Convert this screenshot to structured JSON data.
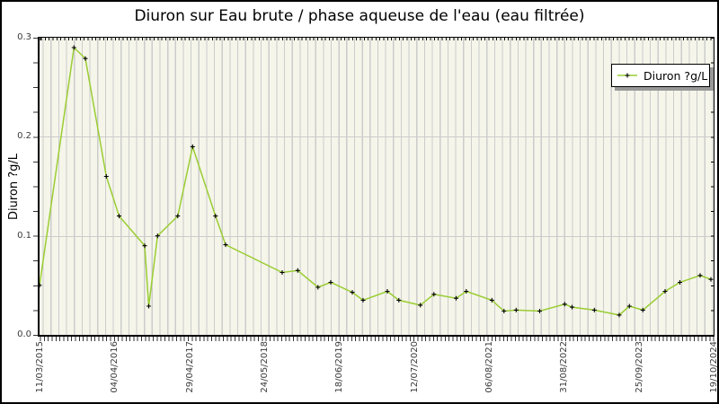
{
  "title": "Diuron sur Eau brute / phase aqueuse de l'eau (eau filtrée)",
  "legend": {
    "label": "Diuron ?g/L"
  },
  "y_axis": {
    "title": "Diuron ?g/L",
    "tick_labels": [
      "0.3",
      "0.2",
      "0.1",
      "0.0"
    ],
    "min": 0.0,
    "max": 0.3
  },
  "x_axis": {
    "tick_labels": [
      "11/03/2015",
      "04/04/2016",
      "29/04/2017",
      "24/05/2018",
      "18/06/2019",
      "12/07/2020",
      "06/08/2021",
      "31/08/2022",
      "25/09/2023",
      "19/10/2024"
    ]
  },
  "colors": {
    "line": "#9acd32",
    "marker": "#000000",
    "plot_background": "#f5f5ea",
    "grid": "#cccccc",
    "legend_shadow": "#999999",
    "text": "#000000"
  },
  "chart_data": {
    "type": "line",
    "title": "Diuron sur Eau brute / phase aqueuse de l'eau (eau filtrée)",
    "xlabel": "",
    "ylabel": "Diuron ?g/L",
    "ylim": [
      0.0,
      0.3
    ],
    "y_major_gridlines": [
      0.1,
      0.2
    ],
    "grid": "horizontal-major-plus-dense-vertical-stripes",
    "legend_position": "top-right",
    "x_tick_labels": [
      "11/03/2015",
      "04/04/2016",
      "29/04/2017",
      "24/05/2018",
      "18/06/2019",
      "12/07/2020",
      "06/08/2021",
      "31/08/2022",
      "25/09/2023",
      "19/10/2024"
    ],
    "series": [
      {
        "name": "Diuron ?g/L",
        "marker": "plus",
        "points_format": "[x_fraction_along_time_axis, value_ug_per_L]",
        "points": [
          [
            0.0,
            0.05
          ],
          [
            0.051,
            0.29
          ],
          [
            0.068,
            0.279
          ],
          [
            0.099,
            0.16
          ],
          [
            0.118,
            0.12
          ],
          [
            0.156,
            0.09
          ],
          [
            0.162,
            0.029
          ],
          [
            0.175,
            0.1
          ],
          [
            0.205,
            0.12
          ],
          [
            0.227,
            0.19
          ],
          [
            0.261,
            0.12
          ],
          [
            0.276,
            0.091
          ],
          [
            0.36,
            0.063
          ],
          [
            0.383,
            0.065
          ],
          [
            0.413,
            0.048
          ],
          [
            0.432,
            0.053
          ],
          [
            0.464,
            0.043
          ],
          [
            0.48,
            0.035
          ],
          [
            0.516,
            0.044
          ],
          [
            0.533,
            0.035
          ],
          [
            0.565,
            0.03
          ],
          [
            0.585,
            0.041
          ],
          [
            0.618,
            0.037
          ],
          [
            0.633,
            0.044
          ],
          [
            0.671,
            0.035
          ],
          [
            0.689,
            0.024
          ],
          [
            0.707,
            0.025
          ],
          [
            0.742,
            0.024
          ],
          [
            0.779,
            0.031
          ],
          [
            0.79,
            0.028
          ],
          [
            0.823,
            0.025
          ],
          [
            0.86,
            0.02
          ],
          [
            0.875,
            0.029
          ],
          [
            0.895,
            0.025
          ],
          [
            0.928,
            0.044
          ],
          [
            0.95,
            0.053
          ],
          [
            0.98,
            0.06
          ],
          [
            0.996,
            0.056
          ]
        ]
      }
    ]
  }
}
